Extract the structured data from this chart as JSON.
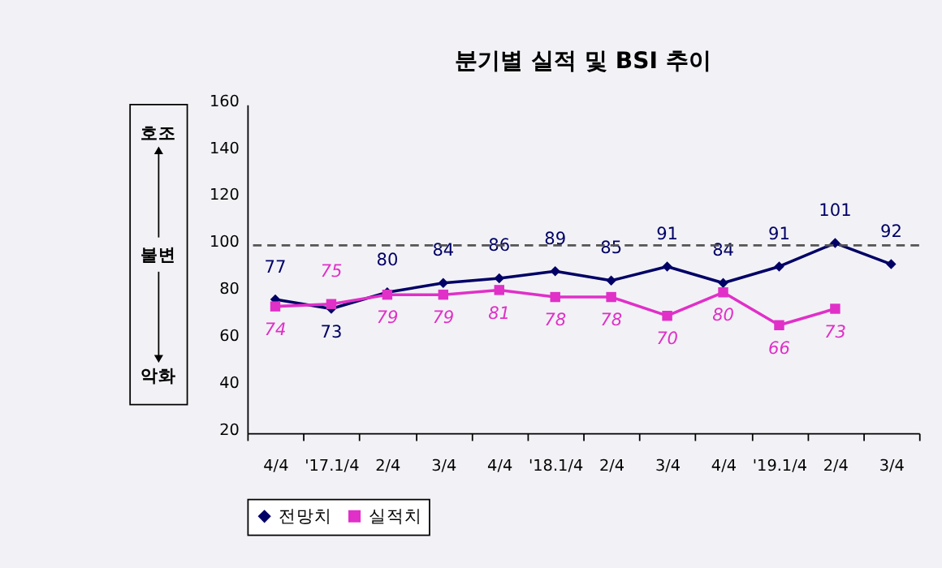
{
  "chart_data": {
    "type": "line",
    "title": "분기별 실적 및 BSI 추이",
    "categories": [
      "4/4",
      "'17.1/4",
      "2/4",
      "3/4",
      "4/4",
      "'18.1/4",
      "2/4",
      "3/4",
      "4/4",
      "'19.1/4",
      "2/4",
      "3/4"
    ],
    "series": [
      {
        "name": "전망치",
        "color": "#000066",
        "marker": "diamond",
        "values": [
          77,
          73,
          80,
          84,
          86,
          89,
          85,
          91,
          84,
          91,
          101,
          92
        ]
      },
      {
        "name": "실적치",
        "color": "#e030c8",
        "marker": "square",
        "values": [
          74,
          75,
          79,
          79,
          81,
          78,
          78,
          70,
          80,
          66,
          73,
          null
        ]
      }
    ],
    "ylim": [
      20,
      160
    ],
    "yticks": [
      20,
      40,
      60,
      80,
      100,
      120,
      140,
      160
    ],
    "ref_lines": [
      {
        "axis": "y",
        "value": 100,
        "color": "#555555",
        "line_style": "dashed"
      }
    ],
    "annotations": [
      "호조",
      "불변",
      "악화"
    ],
    "data_labels": true,
    "grid": false,
    "legend": "bottom",
    "line_style": "solid"
  }
}
